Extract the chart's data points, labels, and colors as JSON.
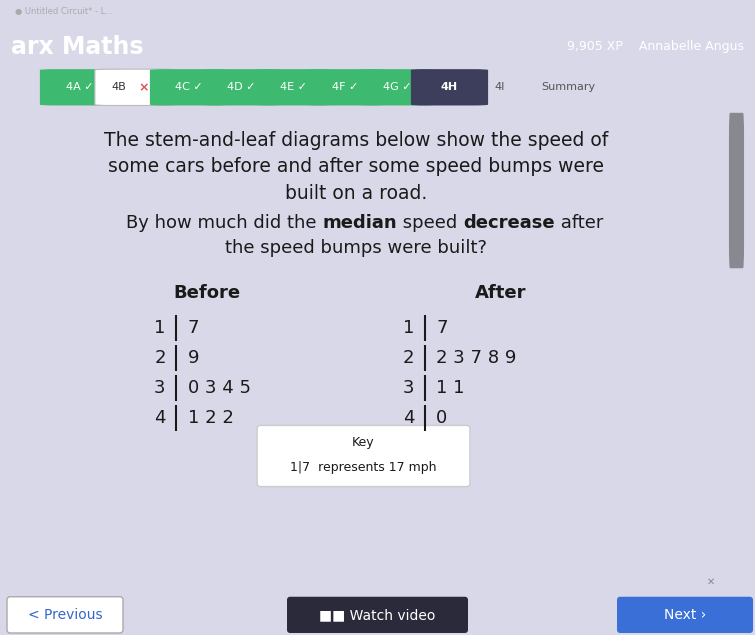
{
  "bg_color_top": "#d8d8e8",
  "bg_color_content": "#f0f0f5",
  "header_bg": "#4a6fd4",
  "header_text": "arx Maths",
  "header_xp": "9,905 XP",
  "header_name": "Annabelle Angus",
  "tabs": [
    "4A ✓",
    "4B ×",
    "4C ✓",
    "4D ✓",
    "4E ✓",
    "4F ✓",
    "4G ✓",
    "4H",
    "4I",
    "Summary"
  ],
  "tab_colors": [
    "#3dba6f",
    "#ffffff",
    "#3dba6f",
    "#3dba6f",
    "#3dba6f",
    "#3dba6f",
    "#3dba6f",
    "#3d3d5c",
    "#f0f0f5",
    "#f0f0f5"
  ],
  "tab_text_colors": [
    "#ffffff",
    "#e05050",
    "#ffffff",
    "#ffffff",
    "#ffffff",
    "#ffffff",
    "#ffffff",
    "#ffffff",
    "#555555",
    "#555555"
  ],
  "tab_border_colors": [
    "none",
    "#cccccc",
    "none",
    "none",
    "none",
    "none",
    "none",
    "none",
    "none",
    "none"
  ],
  "paragraph1": "The stem-and-leaf diagrams below show the speed of\nsome cars before and after some speed bumps were\nbuilt on a road.",
  "paragraph2_line1_parts": [
    {
      "text": "By how much did the ",
      "bold": false
    },
    {
      "text": "median",
      "bold": true
    },
    {
      "text": " speed ",
      "bold": false
    },
    {
      "text": "decrease",
      "bold": true
    },
    {
      "text": " after",
      "bold": false
    }
  ],
  "paragraph2_line2": "the speed bumps were built?",
  "before_label": "Before",
  "after_label": "After",
  "before_stems": [
    1,
    2,
    3,
    4
  ],
  "before_leaves": [
    "7",
    "9",
    "0 3 4 5",
    "1 2 2"
  ],
  "after_stems": [
    1,
    2,
    3,
    4
  ],
  "after_leaves": [
    "7",
    "2 3 7 8 9",
    "1 1",
    "0"
  ],
  "key_text": "Key",
  "key_example": "1|7  represents 17 mph",
  "prev_button": "< Previous",
  "watch_button": "■■ Watch video",
  "content_bg": "#f2f2f7",
  "scrollbar_bg": "#c8c8cc",
  "scrollbar_handle": "#888890"
}
